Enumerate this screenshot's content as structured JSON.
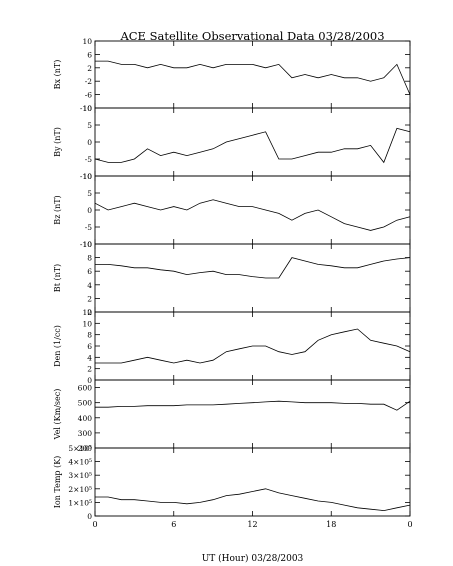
{
  "title": "ACE Satellite Observational Data   03/28/2003",
  "xlabel": "UT (Hour)   03/28/2003",
  "x_tick_labels": [
    "0",
    "6",
    "12",
    "18",
    "0"
  ],
  "chart_data": [
    {
      "type": "line",
      "ylabel": "Bx (nT)",
      "ylim": [
        -10,
        10
      ],
      "yticks": [
        -10,
        -6,
        -2,
        2,
        6,
        10
      ],
      "ytick_labels": [
        "-10",
        "-6",
        "-2",
        "2",
        "6",
        "10"
      ],
      "x": [
        0,
        1,
        2,
        3,
        4,
        5,
        6,
        7,
        8,
        9,
        10,
        11,
        12,
        13,
        14,
        15,
        16,
        17,
        18,
        19,
        20,
        21,
        22,
        23,
        24
      ],
      "values": [
        4,
        4,
        3,
        3,
        2,
        3,
        2,
        2,
        3,
        2,
        3,
        3,
        3,
        2,
        3,
        -1,
        0,
        -1,
        0,
        -1,
        -1,
        -2,
        -1,
        3,
        -6
      ]
    },
    {
      "type": "line",
      "ylabel": "By (nT)",
      "ylim": [
        -10,
        10
      ],
      "yticks": [
        -10,
        -5,
        0,
        5,
        10
      ],
      "ytick_labels": [
        "-10",
        "-5",
        "0",
        "5",
        "10"
      ],
      "x": [
        0,
        1,
        2,
        3,
        4,
        5,
        6,
        7,
        8,
        9,
        10,
        11,
        12,
        13,
        14,
        15,
        16,
        17,
        18,
        19,
        20,
        21,
        22,
        23,
        24
      ],
      "values": [
        -5,
        -6,
        -6,
        -5,
        -2,
        -4,
        -3,
        -4,
        -3,
        -2,
        0,
        1,
        2,
        3,
        -5,
        -5,
        -4,
        -3,
        -3,
        -2,
        -2,
        -1,
        -6,
        4,
        3
      ]
    },
    {
      "type": "line",
      "ylabel": "Bz (nT)",
      "ylim": [
        -10,
        10
      ],
      "yticks": [
        -10,
        -5,
        0,
        5,
        10
      ],
      "ytick_labels": [
        "-10",
        "-5",
        "0",
        "5",
        "10"
      ],
      "x": [
        0,
        1,
        2,
        3,
        4,
        5,
        6,
        7,
        8,
        9,
        10,
        11,
        12,
        13,
        14,
        15,
        16,
        17,
        18,
        19,
        20,
        21,
        22,
        23,
        24
      ],
      "values": [
        2,
        0,
        1,
        2,
        1,
        0,
        1,
        0,
        2,
        3,
        2,
        1,
        1,
        0,
        -1,
        -3,
        -1,
        0,
        -2,
        -4,
        -5,
        -6,
        -5,
        -3,
        -2
      ]
    },
    {
      "type": "line",
      "ylabel": "Bt (nT)",
      "ylim": [
        0,
        10
      ],
      "yticks": [
        0,
        2,
        4,
        6,
        8,
        10
      ],
      "ytick_labels": [
        "0",
        "2",
        "4",
        "6",
        "8",
        "10"
      ],
      "x": [
        0,
        1,
        2,
        3,
        4,
        5,
        6,
        7,
        8,
        9,
        10,
        11,
        12,
        13,
        14,
        15,
        16,
        17,
        18,
        19,
        20,
        21,
        22,
        23,
        24
      ],
      "values": [
        7,
        7,
        6.8,
        6.5,
        6.5,
        6.2,
        6,
        5.5,
        5.8,
        6,
        5.5,
        5.5,
        5.2,
        5,
        5,
        8,
        7.5,
        7,
        6.8,
        6.5,
        6.5,
        7,
        7.5,
        7.8,
        8
      ]
    },
    {
      "type": "line",
      "ylabel": "Den (1/cc)",
      "ylim": [
        0,
        12
      ],
      "yticks": [
        0,
        2,
        4,
        6,
        8,
        10,
        12
      ],
      "ytick_labels": [
        "0",
        "2",
        "4",
        "6",
        "8",
        "10",
        "12"
      ],
      "x": [
        0,
        1,
        2,
        3,
        4,
        5,
        6,
        7,
        8,
        9,
        10,
        11,
        12,
        13,
        14,
        15,
        16,
        17,
        18,
        19,
        20,
        21,
        22,
        23,
        24
      ],
      "values": [
        3,
        3,
        3,
        3.5,
        4,
        3.5,
        3,
        3.5,
        3,
        3.5,
        5,
        5.5,
        6,
        6,
        5,
        4.5,
        5,
        7,
        8,
        8.5,
        9,
        7,
        6.5,
        6,
        5
      ]
    },
    {
      "type": "line",
      "ylabel": "Vel (Km/sec)",
      "ylim": [
        200,
        650
      ],
      "yticks": [
        200,
        300,
        400,
        500,
        600
      ],
      "ytick_labels": [
        "200",
        "300",
        "400",
        "500",
        "600"
      ],
      "x": [
        0,
        1,
        2,
        3,
        4,
        5,
        6,
        7,
        8,
        9,
        10,
        11,
        12,
        13,
        14,
        15,
        16,
        17,
        18,
        19,
        20,
        21,
        22,
        23,
        24
      ],
      "values": [
        470,
        470,
        475,
        475,
        480,
        480,
        480,
        485,
        485,
        485,
        490,
        495,
        500,
        505,
        510,
        505,
        500,
        500,
        500,
        495,
        495,
        490,
        490,
        450,
        510
      ]
    },
    {
      "type": "line",
      "ylabel": "Ion Temp (K)",
      "ylim": [
        0,
        500000
      ],
      "yticks": [
        0,
        100000,
        200000,
        300000,
        400000,
        500000
      ],
      "ytick_labels": [
        "0",
        "1×10⁵",
        "2×10⁵",
        "3×10⁵",
        "4×10⁵",
        "5×10⁵"
      ],
      "x": [
        0,
        1,
        2,
        3,
        4,
        5,
        6,
        7,
        8,
        9,
        10,
        11,
        12,
        13,
        14,
        15,
        16,
        17,
        18,
        19,
        20,
        21,
        22,
        23,
        24
      ],
      "values": [
        140000,
        140000,
        120000,
        120000,
        110000,
        100000,
        100000,
        90000,
        100000,
        120000,
        150000,
        160000,
        180000,
        200000,
        170000,
        150000,
        130000,
        110000,
        100000,
        80000,
        60000,
        50000,
        40000,
        60000,
        80000
      ]
    }
  ]
}
